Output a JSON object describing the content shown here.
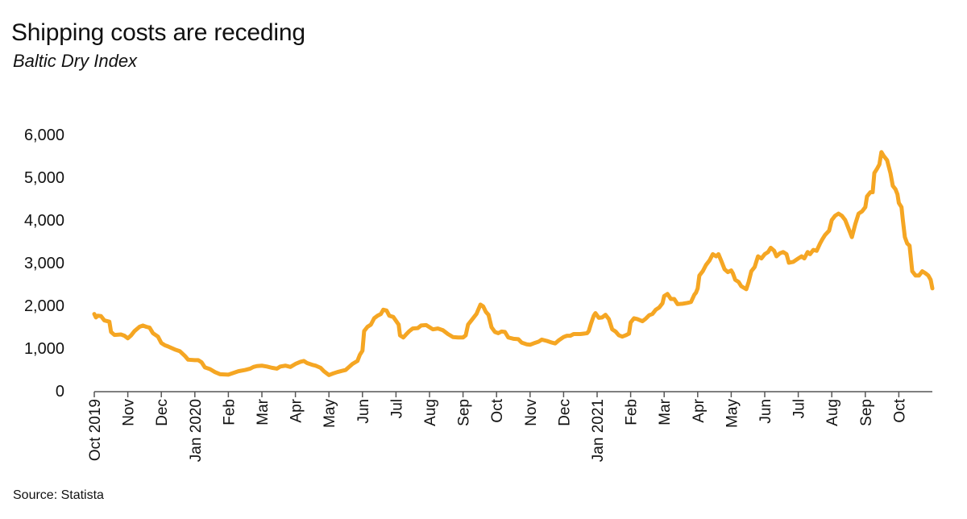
{
  "chart_data": {
    "type": "line",
    "title": "Shipping costs are receding",
    "subtitle": "Baltic Dry Index",
    "xlabel": "",
    "ylabel": "",
    "ylim": [
      0,
      6000
    ],
    "yticks": [
      0,
      1000,
      2000,
      3000,
      4000,
      5000,
      6000
    ],
    "ytick_labels": [
      "0",
      "1,000",
      "2,000",
      "3,000",
      "4,000",
      "5,000",
      "6,000"
    ],
    "x_range_months": [
      0,
      25
    ],
    "xticks": [
      {
        "month": 0,
        "label": "Oct 2019"
      },
      {
        "month": 1,
        "label": "Nov"
      },
      {
        "month": 2,
        "label": "Dec"
      },
      {
        "month": 3,
        "label": "Jan 2020"
      },
      {
        "month": 4,
        "label": "Feb"
      },
      {
        "month": 5,
        "label": "Mar"
      },
      {
        "month": 6,
        "label": "Apr"
      },
      {
        "month": 7,
        "label": "May"
      },
      {
        "month": 8,
        "label": "Jun"
      },
      {
        "month": 9,
        "label": "Jul"
      },
      {
        "month": 10,
        "label": "Aug"
      },
      {
        "month": 11,
        "label": "Sep"
      },
      {
        "month": 12,
        "label": "Oct"
      },
      {
        "month": 13,
        "label": "Nov"
      },
      {
        "month": 14,
        "label": "Dec"
      },
      {
        "month": 15,
        "label": "Jan 2021"
      },
      {
        "month": 16,
        "label": "Feb"
      },
      {
        "month": 17,
        "label": "Mar"
      },
      {
        "month": 18,
        "label": "Apr"
      },
      {
        "month": 19,
        "label": "May"
      },
      {
        "month": 20,
        "label": "Jun"
      },
      {
        "month": 21,
        "label": "Jul"
      },
      {
        "month": 22,
        "label": "Aug"
      },
      {
        "month": 23,
        "label": "Sep"
      },
      {
        "month": 24,
        "label": "Oct"
      }
    ],
    "series": [
      {
        "name": "Baltic Dry Index",
        "color": "#f5a623",
        "points": [
          [
            0.0,
            1800
          ],
          [
            0.05,
            1720
          ],
          [
            0.1,
            1760
          ],
          [
            0.2,
            1750
          ],
          [
            0.3,
            1650
          ],
          [
            0.45,
            1620
          ],
          [
            0.5,
            1380
          ],
          [
            0.6,
            1310
          ],
          [
            0.8,
            1320
          ],
          [
            0.9,
            1290
          ],
          [
            1.0,
            1230
          ],
          [
            1.1,
            1300
          ],
          [
            1.2,
            1400
          ],
          [
            1.35,
            1500
          ],
          [
            1.45,
            1530
          ],
          [
            1.55,
            1500
          ],
          [
            1.65,
            1480
          ],
          [
            1.75,
            1350
          ],
          [
            1.9,
            1270
          ],
          [
            2.0,
            1120
          ],
          [
            2.1,
            1070
          ],
          [
            2.2,
            1040
          ],
          [
            2.4,
            970
          ],
          [
            2.55,
            930
          ],
          [
            2.7,
            820
          ],
          [
            2.8,
            730
          ],
          [
            3.0,
            720
          ],
          [
            3.1,
            720
          ],
          [
            3.2,
            670
          ],
          [
            3.3,
            550
          ],
          [
            3.45,
            510
          ],
          [
            3.6,
            440
          ],
          [
            3.75,
            390
          ],
          [
            4.0,
            380
          ],
          [
            4.15,
            420
          ],
          [
            4.3,
            460
          ],
          [
            4.5,
            490
          ],
          [
            4.65,
            520
          ],
          [
            4.75,
            560
          ],
          [
            4.85,
            580
          ],
          [
            5.0,
            590
          ],
          [
            5.15,
            570
          ],
          [
            5.3,
            540
          ],
          [
            5.45,
            520
          ],
          [
            5.55,
            570
          ],
          [
            5.7,
            590
          ],
          [
            5.85,
            560
          ],
          [
            6.0,
            630
          ],
          [
            6.15,
            680
          ],
          [
            6.25,
            700
          ],
          [
            6.35,
            650
          ],
          [
            6.5,
            610
          ],
          [
            6.6,
            590
          ],
          [
            6.75,
            540
          ],
          [
            6.85,
            460
          ],
          [
            7.0,
            370
          ],
          [
            7.1,
            400
          ],
          [
            7.25,
            440
          ],
          [
            7.4,
            470
          ],
          [
            7.5,
            490
          ],
          [
            7.6,
            560
          ],
          [
            7.7,
            630
          ],
          [
            7.85,
            700
          ],
          [
            7.92,
            840
          ],
          [
            8.0,
            940
          ],
          [
            8.05,
            1400
          ],
          [
            8.15,
            1500
          ],
          [
            8.25,
            1550
          ],
          [
            8.35,
            1700
          ],
          [
            8.45,
            1760
          ],
          [
            8.55,
            1800
          ],
          [
            8.62,
            1900
          ],
          [
            8.72,
            1880
          ],
          [
            8.8,
            1760
          ],
          [
            8.92,
            1730
          ],
          [
            9.0,
            1640
          ],
          [
            9.08,
            1550
          ],
          [
            9.12,
            1300
          ],
          [
            9.22,
            1250
          ],
          [
            9.3,
            1320
          ],
          [
            9.4,
            1400
          ],
          [
            9.5,
            1460
          ],
          [
            9.65,
            1470
          ],
          [
            9.75,
            1530
          ],
          [
            9.9,
            1540
          ],
          [
            10.0,
            1490
          ],
          [
            10.1,
            1440
          ],
          [
            10.25,
            1460
          ],
          [
            10.4,
            1420
          ],
          [
            10.55,
            1330
          ],
          [
            10.7,
            1260
          ],
          [
            10.85,
            1250
          ],
          [
            11.0,
            1250
          ],
          [
            11.08,
            1300
          ],
          [
            11.15,
            1550
          ],
          [
            11.25,
            1650
          ],
          [
            11.4,
            1800
          ],
          [
            11.52,
            2020
          ],
          [
            11.6,
            1980
          ],
          [
            11.68,
            1850
          ],
          [
            11.76,
            1780
          ],
          [
            11.85,
            1490
          ],
          [
            11.95,
            1380
          ],
          [
            12.05,
            1350
          ],
          [
            12.15,
            1390
          ],
          [
            12.25,
            1380
          ],
          [
            12.35,
            1250
          ],
          [
            12.5,
            1220
          ],
          [
            12.65,
            1210
          ],
          [
            12.75,
            1130
          ],
          [
            12.9,
            1090
          ],
          [
            13.0,
            1080
          ],
          [
            13.1,
            1110
          ],
          [
            13.25,
            1150
          ],
          [
            13.35,
            1200
          ],
          [
            13.5,
            1170
          ],
          [
            13.65,
            1130
          ],
          [
            13.75,
            1110
          ],
          [
            13.85,
            1180
          ],
          [
            14.0,
            1260
          ],
          [
            14.1,
            1290
          ],
          [
            14.2,
            1290
          ],
          [
            14.3,
            1330
          ],
          [
            14.5,
            1330
          ],
          [
            14.6,
            1340
          ],
          [
            14.7,
            1350
          ],
          [
            14.75,
            1400
          ],
          [
            14.82,
            1580
          ],
          [
            14.9,
            1760
          ],
          [
            14.95,
            1820
          ],
          [
            15.05,
            1710
          ],
          [
            15.15,
            1720
          ],
          [
            15.25,
            1780
          ],
          [
            15.35,
            1680
          ],
          [
            15.45,
            1440
          ],
          [
            15.55,
            1390
          ],
          [
            15.65,
            1300
          ],
          [
            15.75,
            1270
          ],
          [
            15.85,
            1300
          ],
          [
            15.95,
            1340
          ],
          [
            16.0,
            1600
          ],
          [
            16.1,
            1700
          ],
          [
            16.2,
            1680
          ],
          [
            16.35,
            1630
          ],
          [
            16.45,
            1690
          ],
          [
            16.55,
            1770
          ],
          [
            16.65,
            1800
          ],
          [
            16.75,
            1900
          ],
          [
            16.85,
            1950
          ],
          [
            16.95,
            2050
          ],
          [
            17.0,
            2220
          ],
          [
            17.1,
            2270
          ],
          [
            17.2,
            2150
          ],
          [
            17.3,
            2150
          ],
          [
            17.4,
            2030
          ],
          [
            17.55,
            2040
          ],
          [
            17.7,
            2060
          ],
          [
            17.8,
            2080
          ],
          [
            17.9,
            2250
          ],
          [
            17.95,
            2300
          ],
          [
            18.0,
            2400
          ],
          [
            18.05,
            2700
          ],
          [
            18.15,
            2800
          ],
          [
            18.25,
            2950
          ],
          [
            18.35,
            3050
          ],
          [
            18.45,
            3200
          ],
          [
            18.55,
            3150
          ],
          [
            18.62,
            3200
          ],
          [
            18.7,
            3050
          ],
          [
            18.8,
            2850
          ],
          [
            18.9,
            2780
          ],
          [
            19.0,
            2820
          ],
          [
            19.05,
            2750
          ],
          [
            19.12,
            2600
          ],
          [
            19.22,
            2550
          ],
          [
            19.3,
            2450
          ],
          [
            19.45,
            2380
          ],
          [
            19.52,
            2550
          ],
          [
            19.6,
            2800
          ],
          [
            19.7,
            2900
          ],
          [
            19.8,
            3150
          ],
          [
            19.9,
            3100
          ],
          [
            20.0,
            3200
          ],
          [
            20.1,
            3250
          ],
          [
            20.18,
            3350
          ],
          [
            20.28,
            3280
          ],
          [
            20.35,
            3150
          ],
          [
            20.45,
            3220
          ],
          [
            20.55,
            3250
          ],
          [
            20.65,
            3200
          ],
          [
            20.72,
            3000
          ],
          [
            20.85,
            3020
          ],
          [
            21.0,
            3100
          ],
          [
            21.1,
            3150
          ],
          [
            21.18,
            3100
          ],
          [
            21.28,
            3250
          ],
          [
            21.35,
            3200
          ],
          [
            21.45,
            3300
          ],
          [
            21.55,
            3280
          ],
          [
            21.65,
            3450
          ],
          [
            21.72,
            3550
          ],
          [
            21.8,
            3650
          ],
          [
            21.92,
            3750
          ],
          [
            22.0,
            4000
          ],
          [
            22.1,
            4100
          ],
          [
            22.2,
            4150
          ],
          [
            22.3,
            4100
          ],
          [
            22.4,
            4000
          ],
          [
            22.5,
            3800
          ],
          [
            22.6,
            3600
          ],
          [
            22.7,
            3900
          ],
          [
            22.8,
            4150
          ],
          [
            22.9,
            4200
          ],
          [
            23.0,
            4300
          ],
          [
            23.05,
            4550
          ],
          [
            23.15,
            4650
          ],
          [
            23.22,
            4650
          ],
          [
            23.27,
            5100
          ],
          [
            23.35,
            5200
          ],
          [
            23.42,
            5300
          ],
          [
            23.48,
            5590
          ],
          [
            23.55,
            5500
          ],
          [
            23.65,
            5400
          ],
          [
            23.75,
            5100
          ],
          [
            23.82,
            4800
          ],
          [
            23.9,
            4720
          ],
          [
            23.96,
            4600
          ],
          [
            24.0,
            4400
          ],
          [
            24.08,
            4300
          ],
          [
            24.12,
            4000
          ],
          [
            24.18,
            3600
          ],
          [
            24.25,
            3450
          ],
          [
            24.32,
            3400
          ],
          [
            24.4,
            2800
          ],
          [
            24.5,
            2700
          ],
          [
            24.6,
            2700
          ],
          [
            24.7,
            2800
          ],
          [
            24.8,
            2750
          ],
          [
            24.88,
            2700
          ],
          [
            24.95,
            2600
          ],
          [
            25.0,
            2400
          ]
        ]
      }
    ]
  },
  "source": "Source: Statista"
}
